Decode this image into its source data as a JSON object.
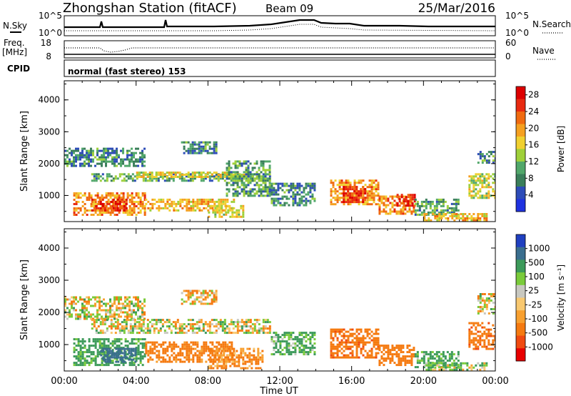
{
  "header": {
    "station": "Zhongshan Station (fitACF)",
    "beam": "Beam 09",
    "date": "25/Mar/2016"
  },
  "top_panels": {
    "nsky_label": "N.Sky",
    "nsearch_label": "N.Search",
    "noise_ticks_left": [
      "10^5",
      "10^0"
    ],
    "noise_ticks_right": [
      "10^5",
      "10^0"
    ],
    "freq_label_1": "Freq.",
    "freq_label_2": "[MHz]",
    "freq_ticks": [
      "18",
      "8"
    ],
    "nave_label": "Nave",
    "nave_ticks": [
      "60",
      "0"
    ],
    "cpid_label": "CPID",
    "cpid_text": "normal (fast stereo) 153"
  },
  "colors": {
    "power_scale": [
      "#1f32e0",
      "#2d4cb8",
      "#3a7e5a",
      "#51a76a",
      "#9fd03a",
      "#f0d030",
      "#f5a020",
      "#f06a10",
      "#e82a10",
      "#dd0000"
    ],
    "velocity_scale": [
      "#e80000",
      "#f04a10",
      "#f57a10",
      "#f8a030",
      "#f8c870",
      "#c8c8c0",
      "#7acb3a",
      "#3c9a5a",
      "#3a6e8e",
      "#2040c0"
    ]
  },
  "chart_data": [
    {
      "type": "heatmap",
      "title": "Power",
      "ylabel": "Slant Range [km]",
      "xlabel": "Time UT",
      "xlim": [
        0,
        24
      ],
      "ylim": [
        180,
        4600
      ],
      "yticks": [
        "1000",
        "2000",
        "3000",
        "4000"
      ],
      "xticks": [
        "00:00",
        "04:00",
        "08:00",
        "12:00",
        "16:00",
        "20:00",
        "00:00"
      ],
      "colorbar_label": "Power [dB]",
      "colorbar_ticks": [
        "4",
        "8",
        "12",
        "16",
        "20",
        "24",
        "28"
      ],
      "colorbar_range": [
        0,
        30
      ],
      "regions": [
        {
          "t": [
            0.0,
            4.5
          ],
          "r": [
            1900,
            2500
          ],
          "value": 8
        },
        {
          "t": [
            1.5,
            11.5
          ],
          "r": [
            1450,
            1700
          ],
          "value": 10
        },
        {
          "t": [
            4.0,
            10.0
          ],
          "r": [
            1550,
            1750
          ],
          "value": 16
        },
        {
          "t": [
            0.5,
            4.5
          ],
          "r": [
            400,
            1100
          ],
          "value": 20
        },
        {
          "t": [
            1.5,
            3.5
          ],
          "r": [
            500,
            900
          ],
          "value": 26
        },
        {
          "t": [
            4.5,
            9.5
          ],
          "r": [
            500,
            900
          ],
          "value": 18
        },
        {
          "t": [
            6.5,
            8.5
          ],
          "r": [
            2300,
            2700
          ],
          "value": 8
        },
        {
          "t": [
            8.0,
            10.0
          ],
          "r": [
            300,
            700
          ],
          "value": 16
        },
        {
          "t": [
            9.0,
            11.5
          ],
          "r": [
            1000,
            2100
          ],
          "value": 10
        },
        {
          "t": [
            11.5,
            14.0
          ],
          "r": [
            700,
            1400
          ],
          "value": 8
        },
        {
          "t": [
            14.8,
            17.5
          ],
          "r": [
            700,
            1500
          ],
          "value": 20
        },
        {
          "t": [
            15.5,
            16.8
          ],
          "r": [
            800,
            1300
          ],
          "value": 26
        },
        {
          "t": [
            17.5,
            19.5
          ],
          "r": [
            400,
            1000
          ],
          "value": 20
        },
        {
          "t": [
            18.5,
            19.5
          ],
          "r": [
            700,
            1050
          ],
          "value": 26
        },
        {
          "t": [
            19.5,
            22.0
          ],
          "r": [
            400,
            900
          ],
          "value": 10
        },
        {
          "t": [
            20.0,
            23.5
          ],
          "r": [
            230,
            450
          ],
          "value": 18
        },
        {
          "t": [
            22.5,
            24.0
          ],
          "r": [
            900,
            1700
          ],
          "value": 14
        },
        {
          "t": [
            23.0,
            24.0
          ],
          "r": [
            2000,
            2400
          ],
          "value": 8
        }
      ]
    },
    {
      "type": "heatmap",
      "title": "Velocity",
      "ylabel": "Slant Range [km]",
      "xlabel": "Time UT",
      "xlim": [
        0,
        24
      ],
      "ylim": [
        180,
        4600
      ],
      "yticks": [
        "1000",
        "2000",
        "3000",
        "4000"
      ],
      "xticks": [
        "00:00",
        "04:00",
        "08:00",
        "12:00",
        "16:00",
        "20:00",
        "00:00"
      ],
      "colorbar_label": "Velocity [m s⁻¹]",
      "colorbar_ticks": [
        "1000",
        "500",
        "100",
        "25",
        "-25",
        "-100",
        "-500",
        "-1000"
      ],
      "colorbar_range": [
        -1200,
        1200
      ],
      "regions": [
        {
          "t": [
            0.0,
            4.5
          ],
          "r": [
            1800,
            2500
          ],
          "value": 0
        },
        {
          "t": [
            1.5,
            11.5
          ],
          "r": [
            1400,
            1800
          ],
          "value": 0
        },
        {
          "t": [
            0.5,
            4.5
          ],
          "r": [
            400,
            1200
          ],
          "value": 200
        },
        {
          "t": [
            2.0,
            4.0
          ],
          "r": [
            500,
            900
          ],
          "value": 700
        },
        {
          "t": [
            4.5,
            9.5
          ],
          "r": [
            500,
            1100
          ],
          "value": -200
        },
        {
          "t": [
            6.5,
            8.5
          ],
          "r": [
            2300,
            2700
          ],
          "value": -80
        },
        {
          "t": [
            8.0,
            11.0
          ],
          "r": [
            300,
            900
          ],
          "value": -150
        },
        {
          "t": [
            11.5,
            14.0
          ],
          "r": [
            700,
            1400
          ],
          "value": 150
        },
        {
          "t": [
            14.8,
            17.5
          ],
          "r": [
            600,
            1500
          ],
          "value": -400
        },
        {
          "t": [
            17.5,
            19.5
          ],
          "r": [
            400,
            1000
          ],
          "value": -250
        },
        {
          "t": [
            19.5,
            22.0
          ],
          "r": [
            300,
            800
          ],
          "value": 150
        },
        {
          "t": [
            20.0,
            23.5
          ],
          "r": [
            230,
            450
          ],
          "value": 80
        },
        {
          "t": [
            22.5,
            24.0
          ],
          "r": [
            900,
            1700
          ],
          "value": -400
        },
        {
          "t": [
            23.0,
            24.0
          ],
          "r": [
            2000,
            2600
          ],
          "value": 0
        }
      ]
    }
  ]
}
